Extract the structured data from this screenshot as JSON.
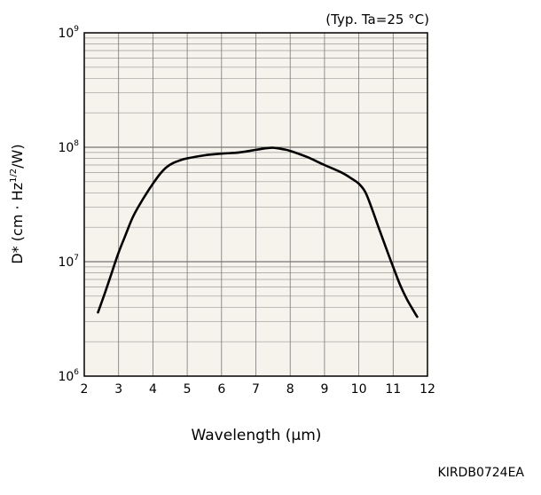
{
  "chart_data": {
    "type": "line",
    "annotation": "(Typ. Ta=25 °C)",
    "xlabel": "Wavelength (µm)",
    "ylabel_parts": {
      "main": "D* (cm · Hz",
      "sup": "1/2",
      "tail": "/W)"
    },
    "code": "KIRDB0724EA",
    "xlim": [
      2,
      12
    ],
    "ylim": [
      1000000,
      1000000000
    ],
    "yscale": "log",
    "grid": true,
    "x_ticks": [
      {
        "value": 2,
        "label": "2"
      },
      {
        "value": 3,
        "label": "3"
      },
      {
        "value": 4,
        "label": "4"
      },
      {
        "value": 5,
        "label": "5"
      },
      {
        "value": 6,
        "label": "6"
      },
      {
        "value": 7,
        "label": "7"
      },
      {
        "value": 8,
        "label": "8"
      },
      {
        "value": 9,
        "label": "9"
      },
      {
        "value": 10,
        "label": "10"
      },
      {
        "value": 11,
        "label": "11"
      },
      {
        "value": 12,
        "label": "12"
      }
    ],
    "y_ticks": [
      {
        "value": 1000000,
        "base": "10",
        "exp": "6"
      },
      {
        "value": 10000000,
        "base": "10",
        "exp": "7"
      },
      {
        "value": 100000000,
        "base": "10",
        "exp": "8"
      },
      {
        "value": 1000000000,
        "base": "10",
        "exp": "9"
      }
    ],
    "series": [
      {
        "color": "#000000",
        "x": [
          2.4,
          2.6,
          2.8,
          3.0,
          3.2,
          3.4,
          3.6,
          3.8,
          4.0,
          4.2,
          4.4,
          4.6,
          4.8,
          5.0,
          5.5,
          6.0,
          6.5,
          7.0,
          7.3,
          7.5,
          7.8,
          8.0,
          8.5,
          9.0,
          9.5,
          9.8,
          10.0,
          10.2,
          10.4,
          10.6,
          10.8,
          11.0,
          11.2,
          11.4,
          11.6,
          11.7
        ],
        "y": [
          3600000,
          5300000,
          8000000,
          12000000,
          17000000,
          24000000,
          31000000,
          39000000,
          48000000,
          58000000,
          67000000,
          73000000,
          77000000,
          80000000,
          85000000,
          88000000,
          90000000,
          95000000,
          98000000,
          99000000,
          96000000,
          93000000,
          82000000,
          70000000,
          60000000,
          53000000,
          48000000,
          40000000,
          28000000,
          19000000,
          13000000,
          9000000,
          6300000,
          4700000,
          3700000,
          3300000
        ]
      }
    ]
  }
}
